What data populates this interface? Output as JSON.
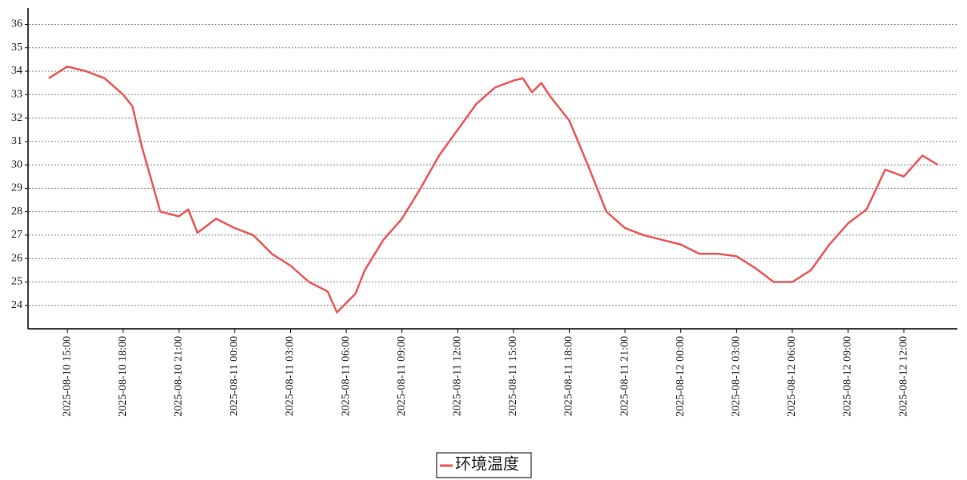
{
  "chart_data": {
    "type": "line",
    "x": [
      "2025-08-10 14:00",
      "2025-08-10 15:00",
      "2025-08-10 16:00",
      "2025-08-10 17:00",
      "2025-08-10 18:00",
      "2025-08-10 18:30",
      "2025-08-10 19:00",
      "2025-08-10 20:00",
      "2025-08-10 21:00",
      "2025-08-10 21:30",
      "2025-08-10 22:00",
      "2025-08-10 23:00",
      "2025-08-11 00:00",
      "2025-08-11 01:00",
      "2025-08-11 02:00",
      "2025-08-11 03:00",
      "2025-08-11 04:00",
      "2025-08-11 05:00",
      "2025-08-11 05:30",
      "2025-08-11 06:00",
      "2025-08-11 06:30",
      "2025-08-11 07:00",
      "2025-08-11 08:00",
      "2025-08-11 09:00",
      "2025-08-11 10:00",
      "2025-08-11 11:00",
      "2025-08-11 12:00",
      "2025-08-11 13:00",
      "2025-08-11 14:00",
      "2025-08-11 15:00",
      "2025-08-11 15:30",
      "2025-08-11 16:00",
      "2025-08-11 16:30",
      "2025-08-11 17:00",
      "2025-08-11 18:00",
      "2025-08-11 19:00",
      "2025-08-11 20:00",
      "2025-08-11 21:00",
      "2025-08-11 22:00",
      "2025-08-11 23:00",
      "2025-08-12 00:00",
      "2025-08-12 01:00",
      "2025-08-12 02:00",
      "2025-08-12 03:00",
      "2025-08-12 04:00",
      "2025-08-12 05:00",
      "2025-08-12 06:00",
      "2025-08-12 07:00",
      "2025-08-12 08:00",
      "2025-08-12 09:00",
      "2025-08-12 10:00",
      "2025-08-12 11:00",
      "2025-08-12 12:00",
      "2025-08-12 13:00",
      "2025-08-12 13:50"
    ],
    "series": [
      {
        "name": "环境温度",
        "color": "#ef5656",
        "values": [
          33.7,
          34.2,
          34.0,
          33.7,
          33.0,
          32.5,
          30.8,
          28.0,
          27.8,
          28.1,
          27.1,
          27.7,
          27.3,
          27.0,
          26.2,
          25.7,
          25.0,
          24.6,
          23.7,
          24.1,
          24.5,
          25.5,
          26.8,
          27.7,
          29.0,
          30.4,
          31.5,
          32.6,
          33.3,
          33.6,
          33.7,
          33.1,
          33.5,
          32.9,
          31.9,
          30.0,
          28.0,
          27.3,
          27.0,
          26.8,
          26.6,
          26.2,
          26.2,
          26.1,
          25.6,
          25.0,
          25.0,
          25.5,
          26.6,
          27.5,
          28.1,
          29.8,
          29.5,
          30.4,
          30.0
        ]
      }
    ],
    "xlim": [
      "2025-08-10 12:53",
      "2025-08-12 14:53"
    ],
    "xticks": [
      "2025-08-10 15:00",
      "2025-08-10 18:00",
      "2025-08-10 21:00",
      "2025-08-11 00:00",
      "2025-08-11 03:00",
      "2025-08-11 06:00",
      "2025-08-11 09:00",
      "2025-08-11 12:00",
      "2025-08-11 15:00",
      "2025-08-11 18:00",
      "2025-08-11 21:00",
      "2025-08-12 00:00",
      "2025-08-12 03:00",
      "2025-08-12 06:00",
      "2025-08-12 09:00",
      "2025-08-12 12:00"
    ],
    "ylim": [
      23,
      36.7
    ],
    "yticks": [
      24,
      25,
      26,
      27,
      28,
      29,
      30,
      31,
      32,
      33,
      34,
      35,
      36
    ],
    "grid": true,
    "legend": "bottom"
  }
}
